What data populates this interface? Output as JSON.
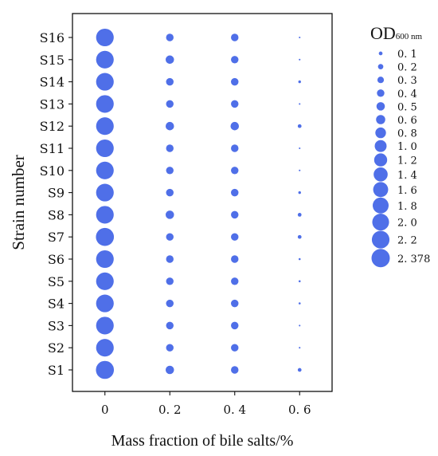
{
  "chart_data": {
    "type": "scatter",
    "subtype": "bubble",
    "xlabel": "Mass fraction of bile salts/%",
    "ylabel": "Strain number",
    "x_ticks": [
      "0",
      "0. 2",
      "0. 4",
      "0. 6"
    ],
    "x_values": [
      0,
      0.2,
      0.4,
      0.6
    ],
    "xlim": [
      -0.1,
      0.7
    ],
    "categories": [
      "S1",
      "S2",
      "S3",
      "S4",
      "S5",
      "S6",
      "S7",
      "S8",
      "S9",
      "S10",
      "S11",
      "S12",
      "S13",
      "S14",
      "S15",
      "S16"
    ],
    "grid": false,
    "color": "#4f6fe8",
    "legend": {
      "title_main": "OD",
      "title_sub": "600 nm",
      "position": "right",
      "sizes": [
        0.1,
        0.2,
        0.3,
        0.4,
        0.5,
        0.6,
        0.8,
        1.0,
        1.2,
        1.4,
        1.6,
        1.8,
        2.0,
        2.2,
        2.378
      ],
      "labels": [
        "0. 1",
        "0. 2",
        "0. 3",
        "0. 4",
        "0. 5",
        "0. 6",
        "0. 8",
        "1. 0",
        "1. 2",
        "1. 4",
        "1. 6",
        "1. 8",
        "2. 0",
        "2. 2",
        "2. 378"
      ]
    },
    "od_values": {
      "x_0": [
        2.3,
        2.2,
        2.2,
        2.2,
        2.2,
        2.2,
        2.3,
        2.2,
        2.2,
        2.2,
        2.2,
        2.2,
        2.2,
        2.2,
        2.2,
        2.2
      ],
      "x_0.2": [
        0.5,
        0.4,
        0.4,
        0.4,
        0.4,
        0.4,
        0.4,
        0.5,
        0.4,
        0.4,
        0.4,
        0.5,
        0.4,
        0.4,
        0.5,
        0.4
      ],
      "x_0.4": [
        0.4,
        0.4,
        0.4,
        0.4,
        0.4,
        0.4,
        0.4,
        0.4,
        0.4,
        0.4,
        0.4,
        0.5,
        0.4,
        0.4,
        0.4,
        0.4
      ],
      "x_0.6": [
        0.1,
        0.02,
        0.02,
        0.03,
        0.03,
        0.03,
        0.1,
        0.1,
        0.05,
        0.02,
        0.02,
        0.1,
        0.02,
        0.05,
        0.02,
        0.02
      ]
    }
  }
}
